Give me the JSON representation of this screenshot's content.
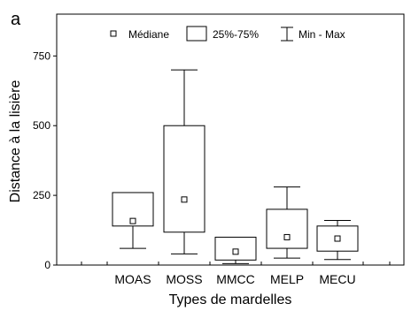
{
  "chart_data": {
    "type": "box",
    "panel_label": "a",
    "xlabel": "Types de mardelles",
    "ylabel": "Distance à la lisière",
    "ylim": [
      0,
      900
    ],
    "yticks": [
      0,
      250,
      500,
      750
    ],
    "legend": {
      "placement": "top",
      "median_label": "Médiane",
      "box_label": "25%-75%",
      "whisker_label": "Min - Max"
    },
    "categories": [
      "MOAS",
      "MOSS",
      "MMCC",
      "MELP",
      "MECU"
    ],
    "boxes": [
      {
        "category": "MOAS",
        "min": 60,
        "q1": 140,
        "median": 158,
        "q3": 260,
        "max": 260
      },
      {
        "category": "MOSS",
        "min": 40,
        "q1": 118,
        "median": 235,
        "q3": 500,
        "max": 700
      },
      {
        "category": "MMCC",
        "min": 5,
        "q1": 18,
        "median": 48,
        "q3": 100,
        "max": 100
      },
      {
        "category": "MELP",
        "min": 25,
        "q1": 60,
        "median": 100,
        "q3": 200,
        "max": 280
      },
      {
        "category": "MECU",
        "min": 20,
        "q1": 50,
        "median": 95,
        "q3": 140,
        "max": 160
      }
    ]
  }
}
